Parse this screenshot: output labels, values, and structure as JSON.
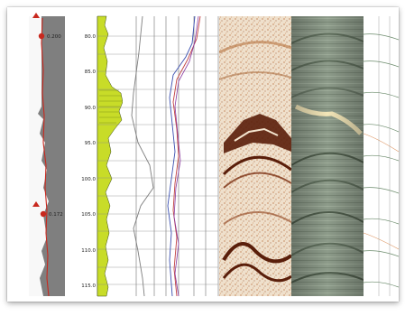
{
  "depth_track": {
    "labels": [
      "80.0",
      "85.0",
      "90.0",
      "95.0",
      "100.0",
      "105.0",
      "110.0",
      "115.0"
    ]
  },
  "markers": [
    {
      "value": "0.200"
    },
    {
      "value": "0.172"
    }
  ],
  "colors": {
    "gray_track": "#7f7f7f",
    "red_curve": "#c8281e",
    "gamma_fill": "#c8dc28",
    "image_light": "#efe2d2",
    "image_dark": "#5a1e0a",
    "core_gray": "#8a9a88",
    "core_light": "#f3e6b8"
  },
  "icons": [
    "marker-triangle-icon",
    "marker-dot-icon"
  ]
}
